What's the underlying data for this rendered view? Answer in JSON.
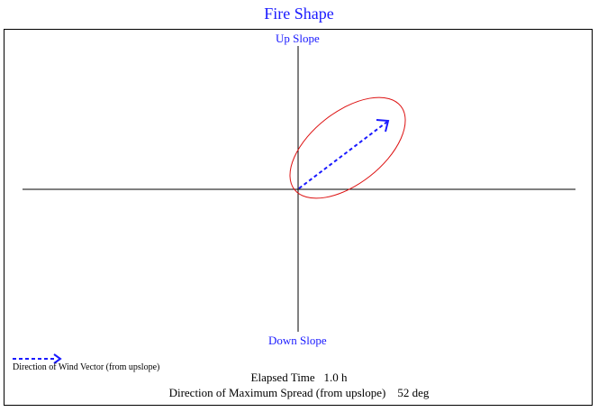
{
  "title": "Fire Shape",
  "axes": {
    "up_label": "Up Slope",
    "down_label": "Down Slope"
  },
  "legend": {
    "label": "Direction of Wind Vector (from upslope)",
    "line_style": "dashed",
    "color": "#1a1aff"
  },
  "info": {
    "elapsed_label": "Elapsed Time",
    "elapsed_value": "1.0 h",
    "direction_label": "Direction of Maximum Spread (from upslope)",
    "direction_value": "52 deg"
  },
  "colors": {
    "title": "#1a1aff",
    "fire_perimeter": "#dd1111",
    "wind_vector": "#1a1aff",
    "axes": "#000000"
  }
}
